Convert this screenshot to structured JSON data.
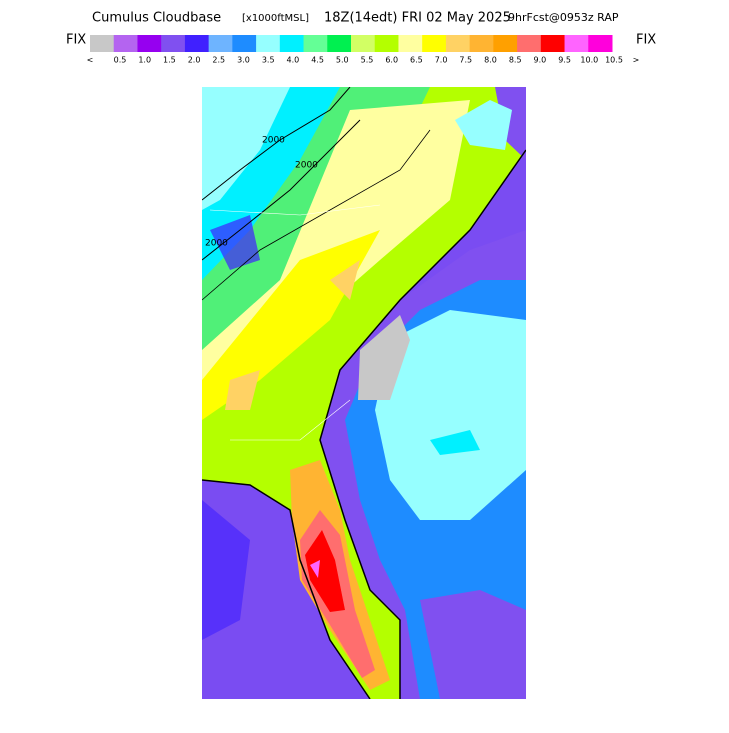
{
  "header": {
    "title": "Cumulus Cloudbase",
    "units": "[x1000ftMSL]",
    "valid_time": "18Z(14edt) FRI 02 May 2025",
    "forecast": "9hrFcst@0953z RAP"
  },
  "legend": {
    "fix_labels": [
      "FIX",
      "FIX"
    ],
    "labels": [
      "<",
      "0.5",
      "1.0",
      "1.5",
      "2.0",
      "2.5",
      "3.0",
      "3.5",
      "4.0",
      "4.5",
      "5.0",
      "5.5",
      "6.0",
      "6.5",
      "7.0",
      "7.5",
      "8.0",
      "8.5",
      "9.0",
      "9.5",
      "10.0",
      "10.5",
      ">"
    ],
    "colors": [
      "#c8c8c8",
      "#b464f0",
      "#9600f0",
      "#8050f0",
      "#4020ff",
      "#6eb4ff",
      "#1e8cff",
      "#96ffff",
      "#00f0ff",
      "#64ff96",
      "#00f050",
      "#d2ff64",
      "#b4ff00",
      "#ffffa0",
      "#ffff00",
      "#ffd264",
      "#ffb432",
      "#ffa000",
      "#ff6e6e",
      "#ff0000",
      "#ff64ff",
      "#ff00dc"
    ]
  },
  "map": {
    "contour_labels": [
      "2000",
      "2000",
      "2000"
    ]
  }
}
